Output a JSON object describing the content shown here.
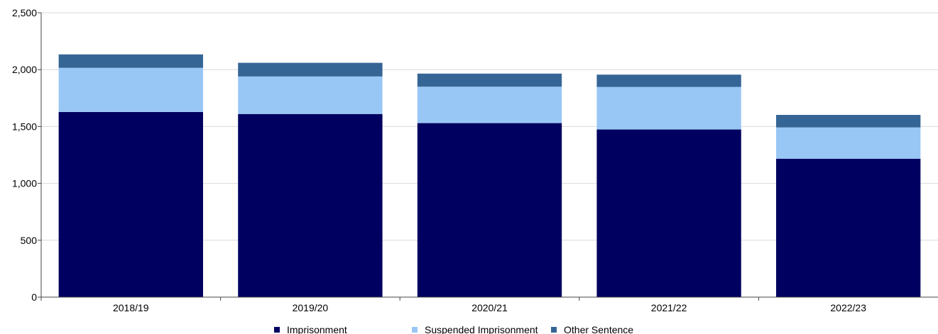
{
  "chart_data": {
    "type": "bar",
    "stacked": true,
    "categories": [
      "2018/19",
      "2019/20",
      "2020/21",
      "2021/22",
      "2022/23"
    ],
    "series": [
      {
        "name": "Imprisonment",
        "color": "#000060",
        "values": [
          1628,
          1610,
          1530,
          1474,
          1217
        ]
      },
      {
        "name": "Suspended Imprisonment",
        "color": "#99c7f5",
        "values": [
          388,
          330,
          320,
          374,
          275
        ]
      },
      {
        "name": "Other Sentence",
        "color": "#356595",
        "values": [
          118,
          120,
          115,
          108,
          110
        ]
      }
    ],
    "y_ticks": [
      "0",
      "500",
      "1,000",
      "1,500",
      "2,000",
      "2,500"
    ],
    "ylim": [
      0,
      2500
    ],
    "grid": true,
    "legend_position": "bottom"
  }
}
